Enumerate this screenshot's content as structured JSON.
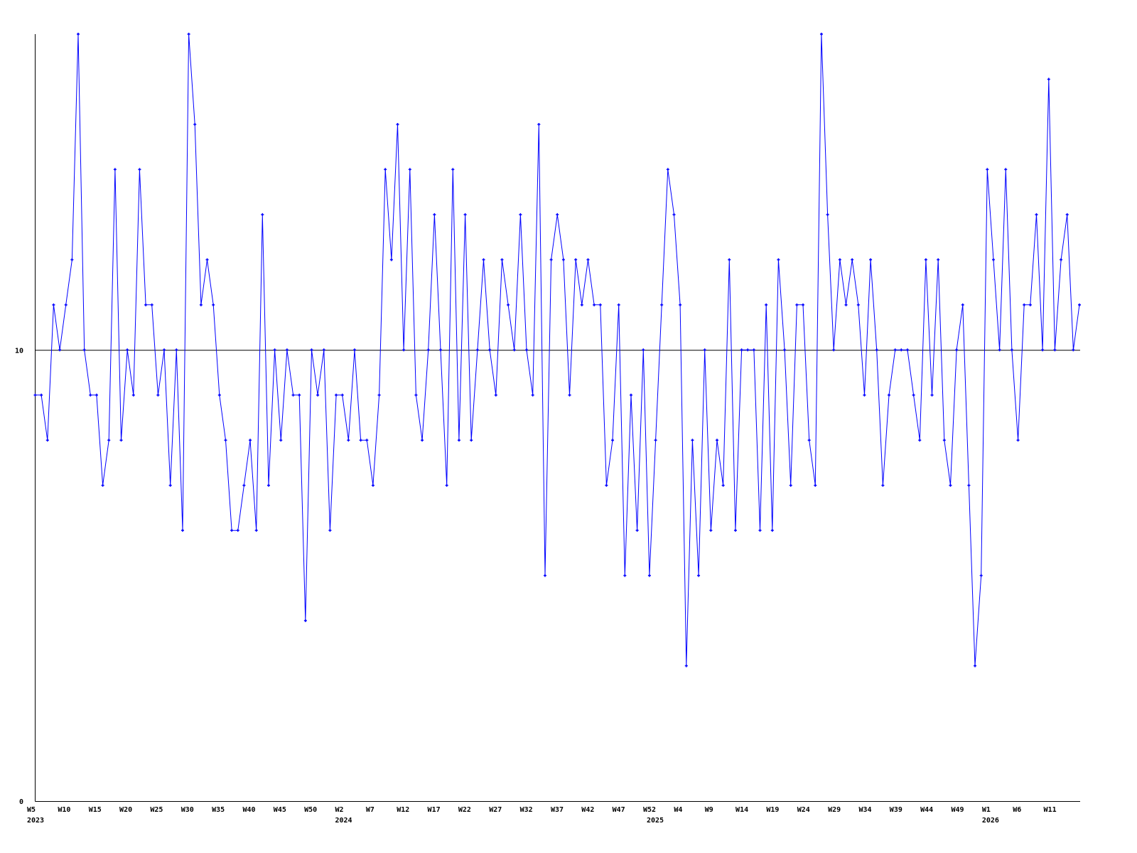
{
  "chart_data": {
    "type": "line",
    "title": "",
    "xlabel": "",
    "ylabel": "",
    "ylim": [
      0,
      17
    ],
    "y_ticks": [
      "0",
      "10"
    ],
    "reference_line": 10,
    "x_tick_labels": [
      "W5",
      "W10",
      "W15",
      "W20",
      "W25",
      "W30",
      "W35",
      "W40",
      "W45",
      "W50",
      "W2",
      "W7",
      "W12",
      "W17",
      "W22",
      "W27",
      "W32",
      "W37",
      "W42",
      "W47",
      "W52",
      "W4",
      "W9",
      "W14",
      "W19",
      "W24",
      "W29",
      "W34",
      "W39",
      "W44",
      "W49",
      "W1",
      "W6",
      "W11"
    ],
    "year_labels": [
      {
        "label": "2023",
        "under": "W5"
      },
      {
        "label": "2024",
        "under": "W2"
      },
      {
        "label": "2025",
        "under": "W52"
      },
      {
        "label": "2026",
        "under": "W1"
      }
    ],
    "x_start": "2023 W5",
    "line_color": "#0000ff",
    "axis_color": "#000000",
    "values": [
      9,
      9,
      8,
      11,
      10,
      11,
      12,
      17,
      10,
      9,
      9,
      7,
      8,
      14,
      8,
      10,
      9,
      14,
      11,
      11,
      9,
      10,
      7,
      10,
      6,
      17,
      15,
      11,
      12,
      11,
      9,
      8,
      6,
      6,
      7,
      8,
      6,
      13,
      7,
      10,
      8,
      10,
      9,
      9,
      4,
      10,
      9,
      10,
      6,
      9,
      9,
      8,
      10,
      8,
      8,
      7,
      9,
      14,
      12,
      15,
      10,
      14,
      9,
      8,
      10,
      13,
      10,
      7,
      14,
      8,
      13,
      8,
      10,
      12,
      10,
      9,
      12,
      11,
      10,
      13,
      10,
      9,
      15,
      5,
      12,
      13,
      12,
      9,
      12,
      11,
      12,
      11,
      11,
      7,
      8,
      11,
      5,
      9,
      6,
      10,
      5,
      8,
      11,
      14,
      13,
      11,
      3,
      8,
      5,
      10,
      6,
      8,
      7,
      12,
      6,
      10,
      10,
      10,
      6,
      11,
      6,
      12,
      10,
      7,
      11,
      11,
      8,
      7,
      17,
      13,
      10,
      12,
      11,
      12,
      11,
      9,
      12,
      10,
      7,
      9,
      10,
      10,
      10,
      9,
      8,
      12,
      9,
      12,
      8,
      7,
      10,
      11,
      7,
      3,
      5,
      14,
      12,
      10,
      14,
      10,
      8,
      11,
      11,
      13,
      10,
      16,
      10,
      12,
      13,
      10,
      11
    ]
  }
}
